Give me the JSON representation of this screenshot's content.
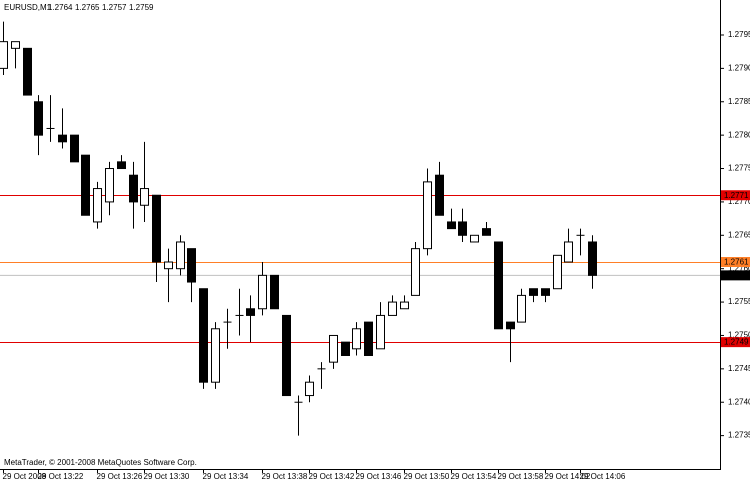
{
  "chart_data": {
    "type": "candlestick",
    "symbol": "EURUSD,M1",
    "header_values": [
      1.2764,
      1.2765,
      1.2757,
      1.2759
    ],
    "footer": "MetaTrader, © 2001-2008 MetaQuotes Software Corp.",
    "categories": [
      "29 Oct 2008",
      null,
      null,
      "29 Oct 13:22",
      null,
      null,
      null,
      null,
      "29 Oct 13:26",
      null,
      null,
      null,
      "29 Oct 13:30",
      null,
      null,
      null,
      null,
      "29 Oct 13:34",
      null,
      null,
      null,
      null,
      "29 Oct 13:38",
      null,
      null,
      null,
      "29 Oct 13:42",
      null,
      null,
      null,
      "29 Oct 13:46",
      null,
      null,
      null,
      "29 Oct 13:50",
      null,
      null,
      null,
      "29 Oct 13:54",
      null,
      null,
      null,
      "29 Oct 13:58",
      null,
      null,
      null,
      "29 Oct 14:02",
      null,
      null,
      "29 Oct 14:06",
      null
    ],
    "open": [
      1.279,
      1.2793,
      1.2793,
      1.2785,
      1.2781,
      1.278,
      1.278,
      1.2777,
      1.2767,
      1.277,
      1.2776,
      1.2774,
      1.27695,
      1.2771,
      1.276,
      1.276,
      1.2763,
      1.2757,
      1.2743,
      1.2752,
      1.2753,
      1.2754,
      1.2754,
      1.2759,
      1.2753,
      1.274,
      1.2741,
      1.2745,
      1.2746,
      1.2749,
      1.2748,
      1.2752,
      1.2748,
      1.2753,
      1.2754,
      1.2756,
      1.2763,
      1.2774,
      1.2767,
      1.2767,
      1.2764,
      1.2766,
      1.2764,
      1.2752,
      1.2752,
      1.2757,
      1.2757,
      1.2757,
      1.2761,
      1.2765,
      1.2764
    ],
    "high": [
      1.2797,
      1.2794,
      1.2793,
      1.2786,
      1.2786,
      1.2784,
      1.278,
      1.2777,
      1.2773,
      1.2776,
      1.2777,
      1.2776,
      1.2779,
      1.2771,
      1.2763,
      1.2765,
      1.2763,
      1.2757,
      1.2752,
      1.2754,
      1.2757,
      1.2756,
      1.2761,
      1.2759,
      1.2753,
      1.2741,
      1.2744,
      1.2746,
      1.275,
      1.2749,
      1.2752,
      1.2752,
      1.2755,
      1.2756,
      1.2756,
      1.2764,
      1.2775,
      1.2776,
      1.2769,
      1.2769,
      1.2765,
      1.2767,
      1.2764,
      1.2752,
      1.2757,
      1.2757,
      1.2757,
      1.2762,
      1.2766,
      1.2766,
      1.2765
    ],
    "low": [
      1.2789,
      1.279,
      1.2786,
      1.2777,
      1.2779,
      1.2778,
      1.2776,
      1.2768,
      1.2766,
      1.2768,
      1.2775,
      1.2766,
      1.2767,
      1.2758,
      1.2755,
      1.2759,
      1.2755,
      1.2742,
      1.2742,
      1.2748,
      1.275,
      1.2749,
      1.2753,
      1.2754,
      1.2741,
      1.2735,
      1.274,
      1.2742,
      1.2745,
      1.2747,
      1.2747,
      1.2747,
      1.2748,
      1.2753,
      1.2754,
      1.2756,
      1.2762,
      1.2768,
      1.2766,
      1.2764,
      1.2764,
      1.2765,
      1.2751,
      1.2746,
      1.2752,
      1.2755,
      1.2755,
      1.2757,
      1.2761,
      1.2762,
      1.2757
    ],
    "close": [
      1.2794,
      1.2794,
      1.2786,
      1.278,
      1.2781,
      1.2779,
      1.2776,
      1.2768,
      1.2772,
      1.2775,
      1.2775,
      1.277,
      1.2772,
      1.2761,
      1.2761,
      1.2764,
      1.2758,
      1.2743,
      1.2751,
      1.2752,
      1.2753,
      1.2753,
      1.2759,
      1.2754,
      1.2741,
      1.274,
      1.2743,
      1.2745,
      1.275,
      1.2747,
      1.2751,
      1.2747,
      1.2753,
      1.2755,
      1.2755,
      1.2763,
      1.2773,
      1.2768,
      1.2766,
      1.2765,
      1.2765,
      1.2765,
      1.2751,
      1.2751,
      1.2756,
      1.2756,
      1.2756,
      1.2762,
      1.2764,
      1.2765,
      1.2759
    ],
    "levels": [
      {
        "value": 1.2771,
        "color": "#e00000"
      },
      {
        "value": 1.2761,
        "color": "#ff7f27"
      },
      {
        "value": 1.2749,
        "color": "#e00000"
      }
    ],
    "current": {
      "value": 1.2759,
      "color": "#c0c0c0"
    },
    "ylim": [
      1.273,
      1.28
    ],
    "yticks": [
      1.2735,
      {
        "value": 1.274,
        "label": "1.2740"
      },
      1.2745,
      {
        "value": 1.275,
        "label": "1.2750"
      },
      1.2755,
      {
        "value": 1.276,
        "label": "1.2760"
      },
      1.2765,
      {
        "value": 1.277,
        "label": "1.2770"
      },
      1.2775,
      {
        "value": 1.278,
        "label": "1.2780"
      },
      1.2785,
      {
        "value": 1.279,
        "label": "1.2790"
      },
      1.2795
    ]
  }
}
